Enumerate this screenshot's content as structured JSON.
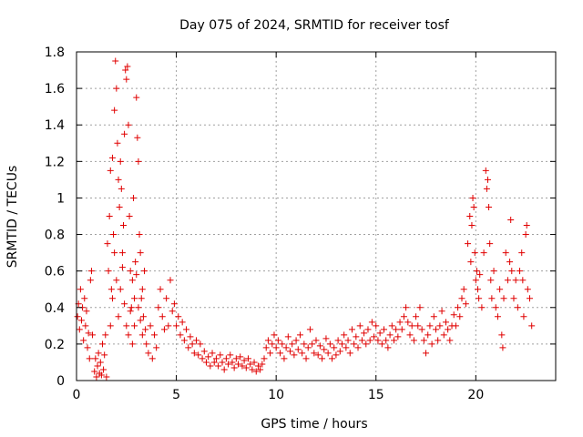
{
  "chart_data": {
    "type": "scatter",
    "title": "Day 075 of 2024, SRMTID for receiver tosf",
    "xlabel": "GPS time / hours",
    "ylabel": "SRMTID / TECUs",
    "xlim": [
      0,
      24
    ],
    "ylim": [
      0,
      1.8
    ],
    "xticks": [
      0,
      5,
      10,
      15,
      20
    ],
    "yticks": [
      0,
      0.2,
      0.4,
      0.6,
      0.8,
      1,
      1.2,
      1.4,
      1.6,
      1.8
    ],
    "xtick_labels": [
      "0",
      "5",
      "10",
      "15",
      "20"
    ],
    "ytick_labels": [
      "0",
      "0.2",
      "0.4",
      "0.6",
      "0.8",
      "1",
      "1.2",
      "1.4",
      "1.6",
      "1.8"
    ],
    "grid": true,
    "marker": "+",
    "marker_color": "#e00000",
    "series": [
      {
        "name": "SRMTID",
        "points": [
          [
            0.05,
            0.35
          ],
          [
            0.1,
            0.42
          ],
          [
            0.15,
            0.28
          ],
          [
            0.2,
            0.5
          ],
          [
            0.25,
            0.33
          ],
          [
            0.3,
            0.4
          ],
          [
            0.35,
            0.22
          ],
          [
            0.4,
            0.45
          ],
          [
            0.45,
            0.3
          ],
          [
            0.5,
            0.38
          ],
          [
            0.55,
            0.18
          ],
          [
            0.6,
            0.26
          ],
          [
            0.65,
            0.12
          ],
          [
            0.7,
            0.55
          ],
          [
            0.75,
            0.6
          ],
          [
            0.8,
            0.25
          ],
          [
            0.9,
            0.05
          ],
          [
            0.95,
            0.12
          ],
          [
            1.0,
            0.02
          ],
          [
            1.05,
            0.08
          ],
          [
            1.1,
            0.15
          ],
          [
            1.15,
            0.04
          ],
          [
            1.2,
            0.1
          ],
          [
            1.25,
            0.03
          ],
          [
            1.3,
            0.2
          ],
          [
            1.35,
            0.06
          ],
          [
            1.4,
            0.14
          ],
          [
            1.45,
            0.25
          ],
          [
            1.5,
            0.02
          ],
          [
            1.55,
            0.75
          ],
          [
            1.6,
            0.6
          ],
          [
            1.65,
            0.9
          ],
          [
            1.7,
            1.15
          ],
          [
            1.75,
            0.5
          ],
          [
            1.8,
            1.22
          ],
          [
            1.85,
            0.8
          ],
          [
            1.9,
            1.48
          ],
          [
            1.95,
            1.75
          ],
          [
            2.0,
            1.6
          ],
          [
            2.05,
            1.3
          ],
          [
            2.1,
            1.1
          ],
          [
            2.15,
            0.95
          ],
          [
            2.2,
            1.2
          ],
          [
            2.25,
            1.05
          ],
          [
            2.3,
            0.7
          ],
          [
            2.35,
            0.85
          ],
          [
            2.4,
            1.35
          ],
          [
            2.45,
            1.7
          ],
          [
            2.5,
            1.65
          ],
          [
            2.55,
            1.72
          ],
          [
            2.6,
            1.4
          ],
          [
            2.65,
            0.9
          ],
          [
            2.7,
            0.6
          ],
          [
            2.75,
            0.4
          ],
          [
            2.8,
            0.55
          ],
          [
            2.85,
            1.0
          ],
          [
            2.9,
            0.3
          ],
          [
            2.95,
            0.65
          ],
          [
            3.0,
            1.55
          ],
          [
            3.05,
            1.33
          ],
          [
            3.1,
            1.2
          ],
          [
            3.15,
            0.8
          ],
          [
            3.2,
            0.7
          ],
          [
            3.25,
            0.45
          ],
          [
            3.3,
            0.5
          ],
          [
            3.35,
            0.35
          ],
          [
            3.4,
            0.6
          ],
          [
            3.45,
            0.28
          ],
          [
            1.7,
            0.3
          ],
          [
            1.8,
            0.45
          ],
          [
            1.9,
            0.7
          ],
          [
            2.0,
            0.55
          ],
          [
            2.1,
            0.35
          ],
          [
            2.2,
            0.5
          ],
          [
            2.3,
            0.62
          ],
          [
            2.4,
            0.42
          ],
          [
            2.5,
            0.3
          ],
          [
            2.6,
            0.25
          ],
          [
            2.7,
            0.38
          ],
          [
            2.8,
            0.2
          ],
          [
            2.9,
            0.45
          ],
          [
            3.0,
            0.58
          ],
          [
            3.1,
            0.4
          ],
          [
            3.2,
            0.33
          ],
          [
            3.3,
            0.25
          ],
          [
            3.5,
            0.2
          ],
          [
            3.6,
            0.15
          ],
          [
            3.7,
            0.3
          ],
          [
            3.8,
            0.12
          ],
          [
            3.9,
            0.25
          ],
          [
            4.0,
            0.18
          ],
          [
            4.1,
            0.4
          ],
          [
            4.2,
            0.5
          ],
          [
            4.3,
            0.35
          ],
          [
            4.4,
            0.28
          ],
          [
            4.5,
            0.45
          ],
          [
            4.6,
            0.3
          ],
          [
            4.7,
            0.55
          ],
          [
            4.8,
            0.38
          ],
          [
            4.9,
            0.42
          ],
          [
            5.0,
            0.3
          ],
          [
            5.1,
            0.35
          ],
          [
            5.2,
            0.25
          ],
          [
            5.3,
            0.32
          ],
          [
            5.4,
            0.22
          ],
          [
            5.5,
            0.28
          ],
          [
            5.6,
            0.18
          ],
          [
            5.7,
            0.24
          ],
          [
            5.8,
            0.2
          ],
          [
            5.9,
            0.15
          ],
          [
            6.0,
            0.22
          ],
          [
            6.1,
            0.14
          ],
          [
            6.2,
            0.2
          ],
          [
            6.3,
            0.12
          ],
          [
            6.4,
            0.16
          ],
          [
            6.5,
            0.1
          ],
          [
            6.6,
            0.13
          ],
          [
            6.7,
            0.08
          ],
          [
            6.8,
            0.15
          ],
          [
            6.9,
            0.1
          ],
          [
            7.0,
            0.12
          ],
          [
            7.1,
            0.08
          ],
          [
            7.2,
            0.14
          ],
          [
            7.3,
            0.1
          ],
          [
            7.4,
            0.06
          ],
          [
            7.5,
            0.12
          ],
          [
            7.6,
            0.09
          ],
          [
            7.7,
            0.14
          ],
          [
            7.8,
            0.1
          ],
          [
            7.9,
            0.07
          ],
          [
            8.0,
            0.12
          ],
          [
            8.1,
            0.09
          ],
          [
            8.2,
            0.13
          ],
          [
            8.3,
            0.08
          ],
          [
            8.4,
            0.11
          ],
          [
            8.5,
            0.07
          ],
          [
            8.6,
            0.12
          ],
          [
            8.7,
            0.09
          ],
          [
            8.8,
            0.06
          ],
          [
            8.9,
            0.1
          ],
          [
            9.0,
            0.05
          ],
          [
            9.1,
            0.08
          ],
          [
            9.2,
            0.06
          ],
          [
            9.3,
            0.09
          ],
          [
            9.4,
            0.12
          ],
          [
            9.5,
            0.18
          ],
          [
            9.6,
            0.22
          ],
          [
            9.7,
            0.15
          ],
          [
            9.8,
            0.2
          ],
          [
            9.9,
            0.25
          ],
          [
            10.0,
            0.18
          ],
          [
            10.1,
            0.22
          ],
          [
            10.2,
            0.15
          ],
          [
            10.3,
            0.2
          ],
          [
            10.4,
            0.12
          ],
          [
            10.5,
            0.18
          ],
          [
            10.6,
            0.24
          ],
          [
            10.7,
            0.16
          ],
          [
            10.8,
            0.2
          ],
          [
            10.9,
            0.14
          ],
          [
            11.0,
            0.22
          ],
          [
            11.1,
            0.17
          ],
          [
            11.2,
            0.25
          ],
          [
            11.3,
            0.15
          ],
          [
            11.4,
            0.2
          ],
          [
            11.5,
            0.12
          ],
          [
            11.6,
            0.18
          ],
          [
            11.7,
            0.28
          ],
          [
            11.8,
            0.2
          ],
          [
            11.9,
            0.15
          ],
          [
            12.0,
            0.22
          ],
          [
            12.1,
            0.14
          ],
          [
            12.2,
            0.19
          ],
          [
            12.3,
            0.12
          ],
          [
            12.4,
            0.17
          ],
          [
            12.5,
            0.23
          ],
          [
            12.6,
            0.15
          ],
          [
            12.7,
            0.2
          ],
          [
            12.8,
            0.12
          ],
          [
            12.9,
            0.18
          ],
          [
            13.0,
            0.14
          ],
          [
            13.1,
            0.22
          ],
          [
            13.2,
            0.16
          ],
          [
            13.3,
            0.2
          ],
          [
            13.4,
            0.25
          ],
          [
            13.5,
            0.18
          ],
          [
            13.6,
            0.22
          ],
          [
            13.7,
            0.15
          ],
          [
            13.8,
            0.28
          ],
          [
            13.9,
            0.2
          ],
          [
            14.0,
            0.24
          ],
          [
            14.1,
            0.18
          ],
          [
            14.2,
            0.3
          ],
          [
            14.3,
            0.22
          ],
          [
            14.4,
            0.26
          ],
          [
            14.5,
            0.2
          ],
          [
            14.6,
            0.28
          ],
          [
            14.7,
            0.22
          ],
          [
            14.8,
            0.32
          ],
          [
            14.9,
            0.24
          ],
          [
            15.0,
            0.3
          ],
          [
            15.1,
            0.22
          ],
          [
            15.2,
            0.26
          ],
          [
            15.3,
            0.2
          ],
          [
            15.4,
            0.28
          ],
          [
            15.5,
            0.22
          ],
          [
            15.6,
            0.18
          ],
          [
            15.7,
            0.25
          ],
          [
            15.8,
            0.3
          ],
          [
            15.9,
            0.22
          ],
          [
            16.0,
            0.28
          ],
          [
            16.1,
            0.24
          ],
          [
            16.2,
            0.32
          ],
          [
            16.3,
            0.28
          ],
          [
            16.4,
            0.35
          ],
          [
            16.5,
            0.4
          ],
          [
            16.6,
            0.32
          ],
          [
            16.7,
            0.25
          ],
          [
            16.8,
            0.3
          ],
          [
            16.9,
            0.22
          ],
          [
            17.0,
            0.35
          ],
          [
            17.1,
            0.3
          ],
          [
            17.2,
            0.4
          ],
          [
            17.3,
            0.28
          ],
          [
            17.4,
            0.22
          ],
          [
            17.5,
            0.15
          ],
          [
            17.6,
            0.25
          ],
          [
            17.7,
            0.3
          ],
          [
            17.8,
            0.2
          ],
          [
            17.9,
            0.35
          ],
          [
            18.0,
            0.28
          ],
          [
            18.1,
            0.22
          ],
          [
            18.2,
            0.3
          ],
          [
            18.3,
            0.38
          ],
          [
            18.4,
            0.25
          ],
          [
            18.5,
            0.32
          ],
          [
            18.6,
            0.28
          ],
          [
            18.7,
            0.22
          ],
          [
            18.8,
            0.3
          ],
          [
            18.9,
            0.36
          ],
          [
            19.0,
            0.3
          ],
          [
            19.1,
            0.4
          ],
          [
            19.2,
            0.35
          ],
          [
            19.3,
            0.45
          ],
          [
            19.4,
            0.5
          ],
          [
            19.5,
            0.42
          ],
          [
            19.6,
            0.75
          ],
          [
            19.7,
            0.9
          ],
          [
            19.75,
            0.65
          ],
          [
            19.8,
            0.85
          ],
          [
            19.85,
            1.0
          ],
          [
            19.9,
            0.95
          ],
          [
            19.95,
            0.7
          ],
          [
            20.0,
            0.55
          ],
          [
            20.05,
            0.6
          ],
          [
            20.1,
            0.5
          ],
          [
            20.15,
            0.45
          ],
          [
            20.2,
            0.58
          ],
          [
            20.3,
            0.4
          ],
          [
            20.4,
            0.7
          ],
          [
            20.5,
            1.15
          ],
          [
            20.55,
            1.05
          ],
          [
            20.6,
            1.1
          ],
          [
            20.65,
            0.95
          ],
          [
            20.7,
            0.75
          ],
          [
            20.75,
            0.55
          ],
          [
            20.8,
            0.45
          ],
          [
            20.9,
            0.6
          ],
          [
            21.0,
            0.4
          ],
          [
            21.1,
            0.35
          ],
          [
            21.2,
            0.5
          ],
          [
            21.3,
            0.25
          ],
          [
            21.35,
            0.18
          ],
          [
            21.4,
            0.45
          ],
          [
            21.5,
            0.7
          ],
          [
            21.6,
            0.55
          ],
          [
            21.7,
            0.65
          ],
          [
            21.75,
            0.88
          ],
          [
            21.8,
            0.6
          ],
          [
            21.9,
            0.45
          ],
          [
            22.0,
            0.55
          ],
          [
            22.1,
            0.4
          ],
          [
            22.2,
            0.6
          ],
          [
            22.3,
            0.7
          ],
          [
            22.35,
            0.55
          ],
          [
            22.4,
            0.35
          ],
          [
            22.5,
            0.8
          ],
          [
            22.55,
            0.85
          ],
          [
            22.6,
            0.5
          ],
          [
            22.7,
            0.45
          ],
          [
            22.8,
            0.3
          ]
        ]
      }
    ]
  }
}
